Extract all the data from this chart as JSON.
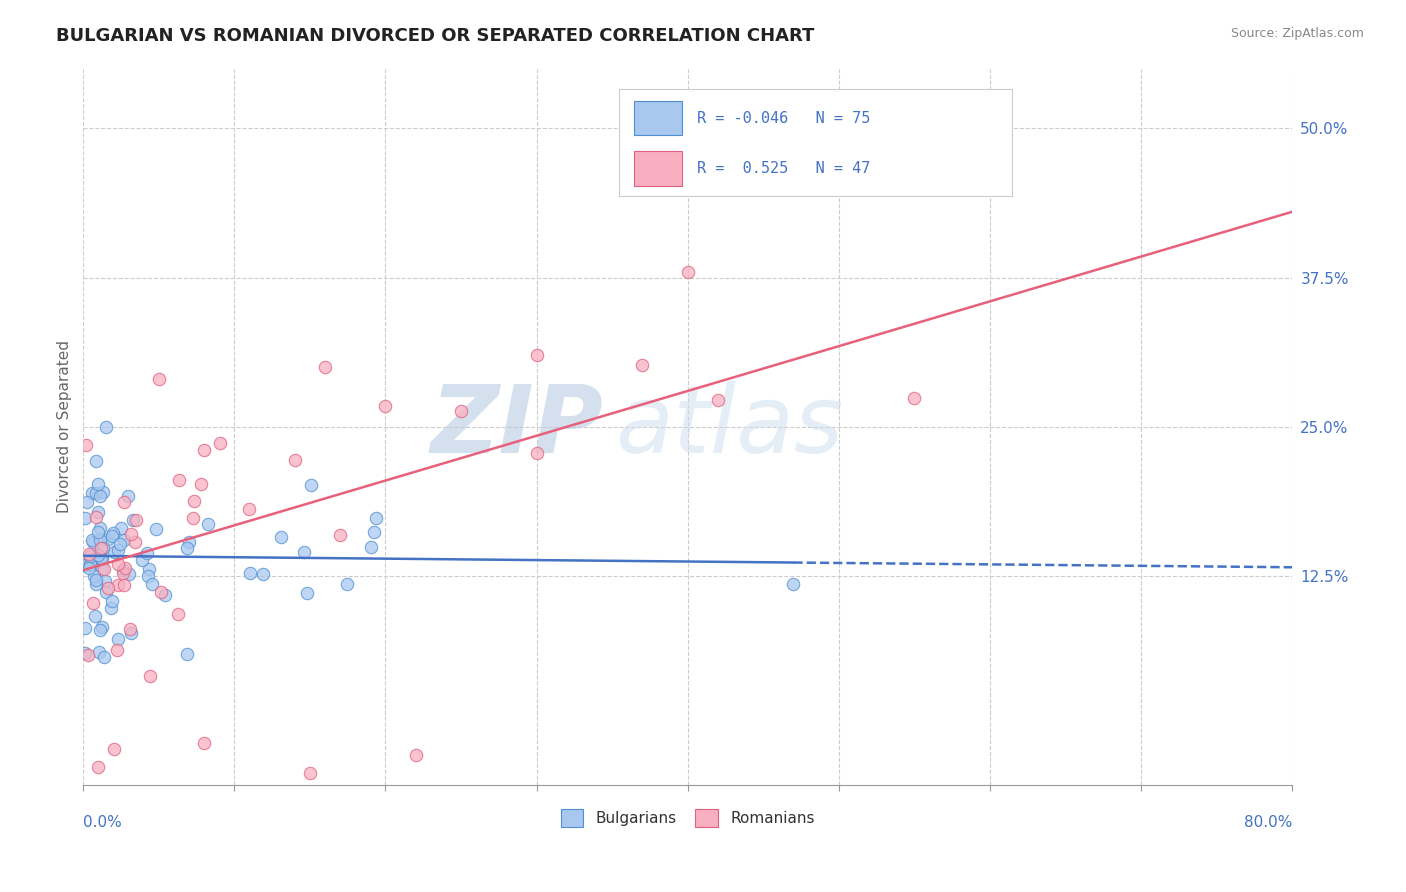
{
  "title": "BULGARIAN VS ROMANIAN DIVORCED OR SEPARATED CORRELATION CHART",
  "source": "Source: ZipAtlas.com",
  "ylabel": "Divorced or Separated",
  "x_min": 0.0,
  "x_max": 80.0,
  "y_min": -5.0,
  "y_max": 55.0,
  "y_ticks": [
    12.5,
    25.0,
    37.5,
    50.0
  ],
  "x_ticks": [
    0.0,
    10.0,
    20.0,
    30.0,
    40.0,
    50.0,
    60.0,
    70.0,
    80.0
  ],
  "bulgarian_R": -0.046,
  "bulgarian_N": 75,
  "romanian_R": 0.525,
  "romanian_N": 47,
  "bulgarian_color": "#a8c8f0",
  "romanian_color": "#f8b0c0",
  "bulgarian_edge_color": "#5090d0",
  "romanian_edge_color": "#e06080",
  "bulgarian_line_color": "#4472c4",
  "romanian_line_color": "#e8607a",
  "watermark_zip": "ZIP",
  "watermark_atlas": "atlas",
  "watermark_color_zip": "#b8cce4",
  "watermark_color_atlas": "#c8d8ec",
  "legend_border_color": "#cccccc",
  "legend_text_color": "#4472c4",
  "title_color": "#222222",
  "source_color": "#888888",
  "grid_color": "#cccccc",
  "bulgarian_line_solid_end": 47.0,
  "romanian_line_intercept": 13.0,
  "romanian_line_slope": 0.375,
  "bulgarian_line_intercept": 14.2,
  "bulgarian_line_slope": -0.012
}
